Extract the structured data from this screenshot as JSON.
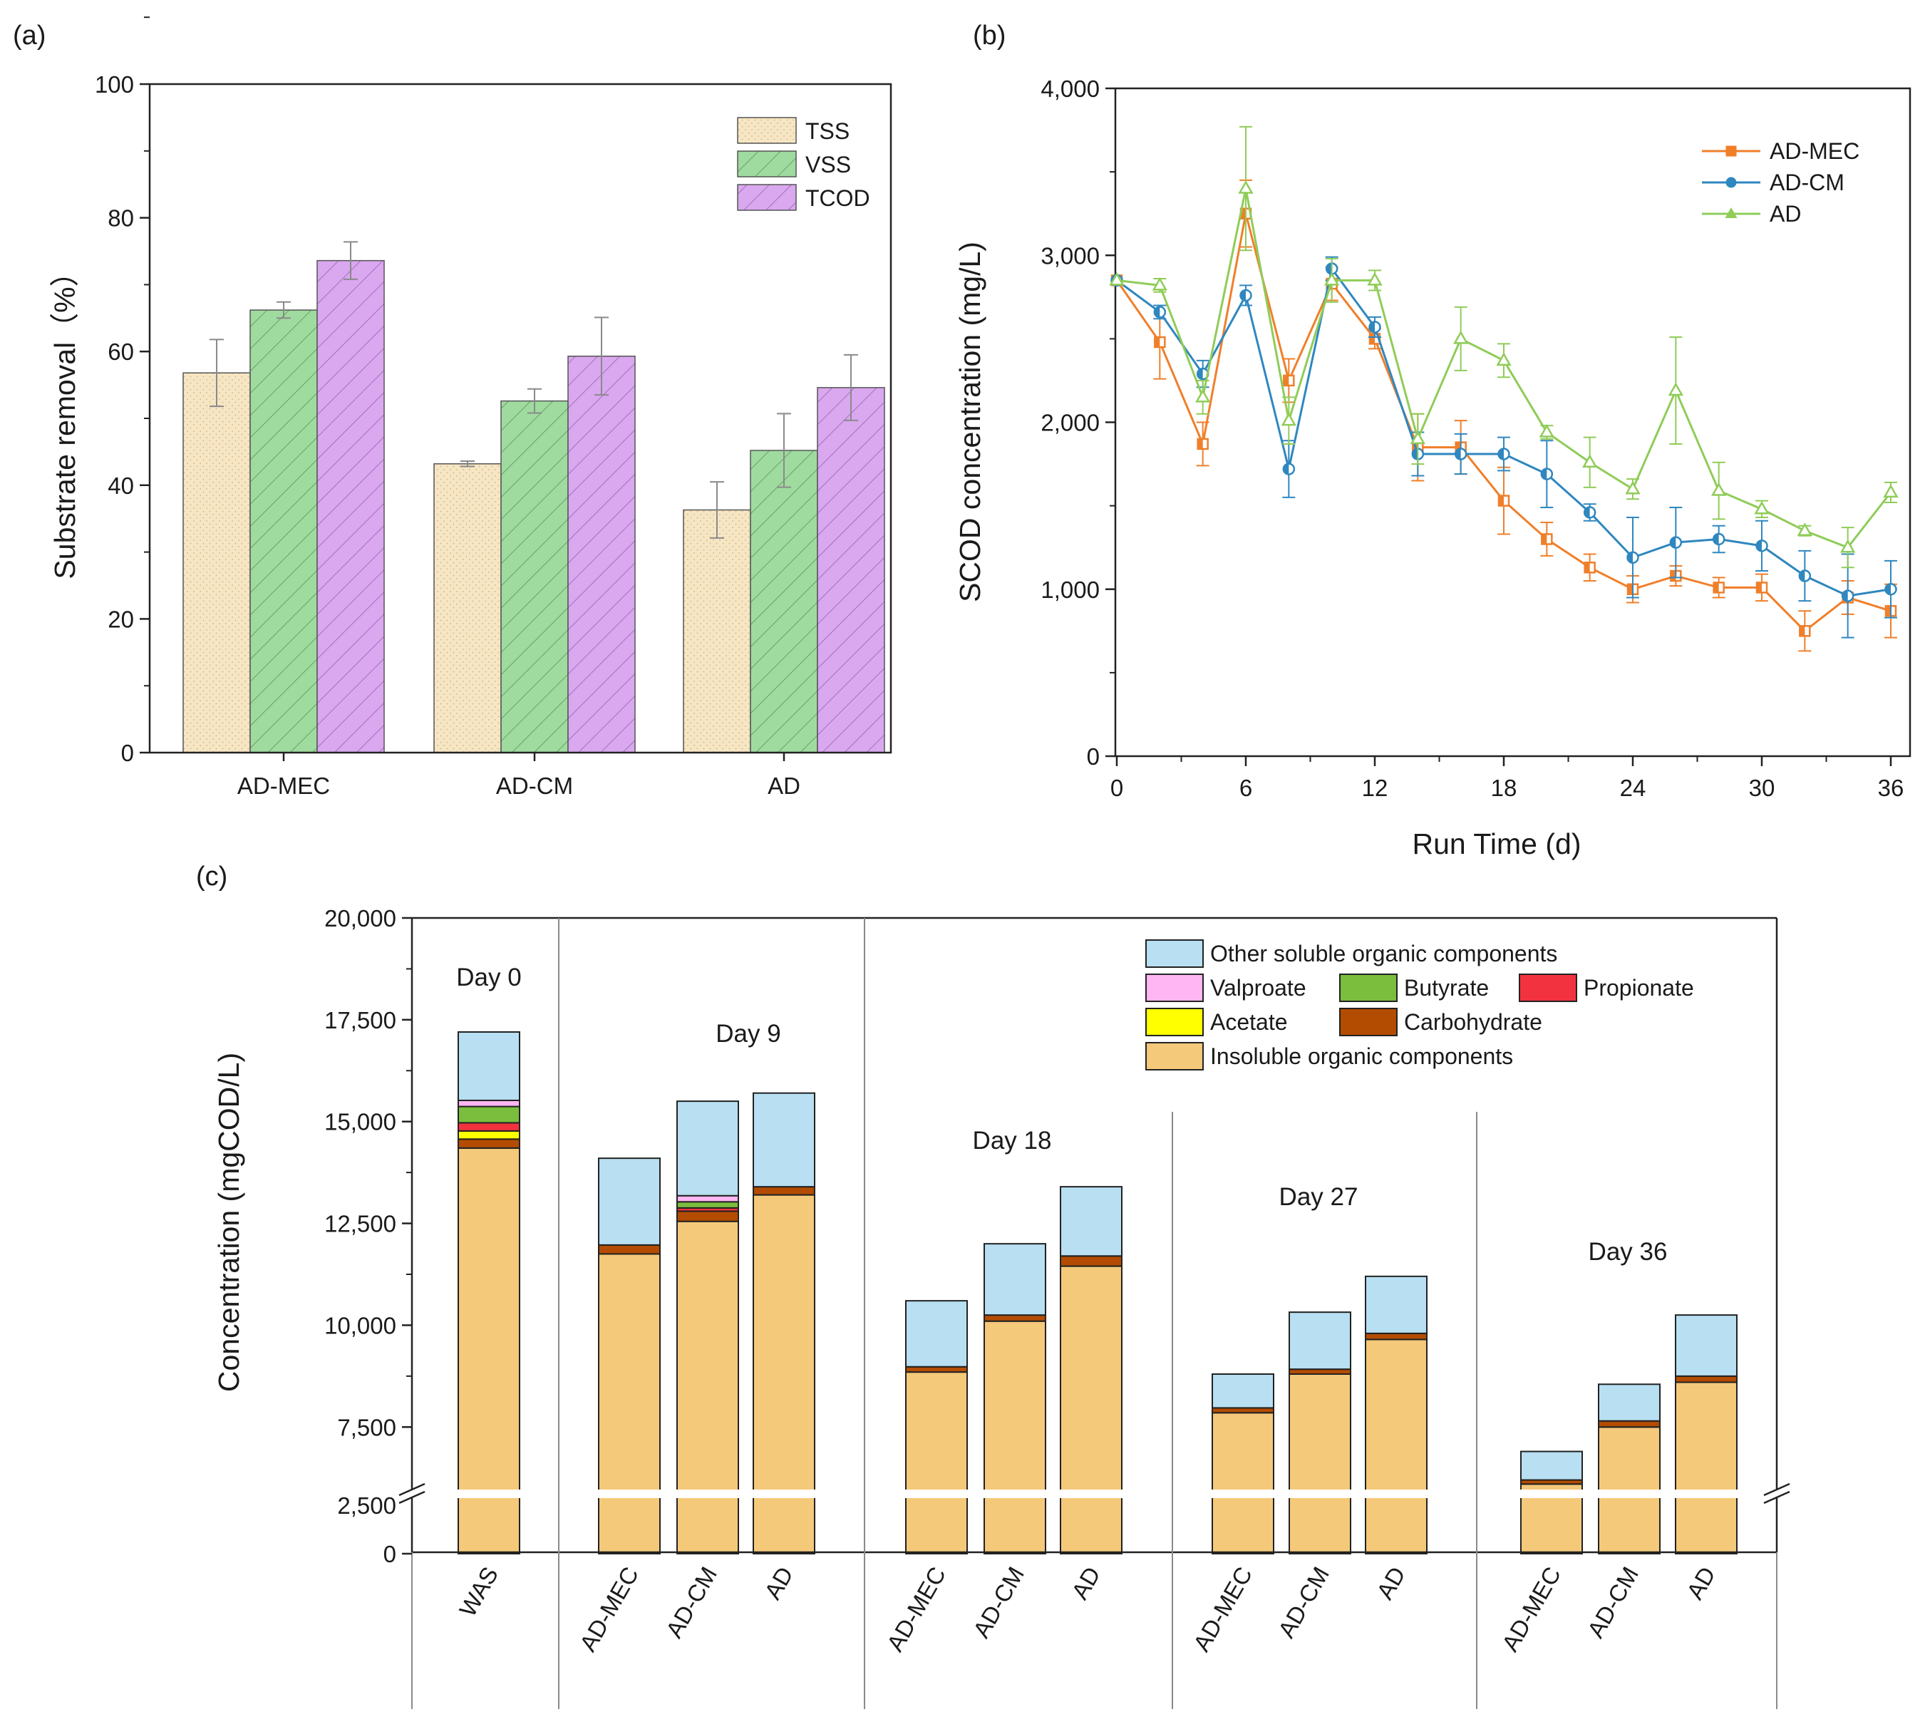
{
  "colors": {
    "tss": "#f7e6c4",
    "vss": "#9fdb9f",
    "tcod": "#d9a8ee",
    "ad_mec": "#f07f2a",
    "ad_cm": "#2f87c0",
    "ad": "#8fcc58",
    "insoluble": "#f5c97a",
    "carbohydrate": "#b34c00",
    "acetate": "#ffff00",
    "propionate": "#f2333f",
    "butyrate": "#7bbd3d",
    "valproate": "#ffb6f3",
    "other": "#b8dff2"
  },
  "chart_data": [
    {
      "panel": "(a)",
      "type": "bar",
      "ylabel": "Substrate removal（%）",
      "ylim": [
        0,
        100
      ],
      "yticks": [
        "0",
        "20",
        "40",
        "60",
        "80",
        "100"
      ],
      "categories": [
        "AD-MEC",
        "AD-CM",
        "AD"
      ],
      "series": [
        {
          "name": "TSS",
          "values": [
            56.8,
            43.2,
            36.3
          ],
          "errors": [
            5.0,
            0.4,
            4.2
          ]
        },
        {
          "name": "VSS",
          "values": [
            66.2,
            52.6,
            45.2
          ],
          "errors": [
            1.2,
            1.8,
            5.5
          ]
        },
        {
          "name": "TCOD",
          "values": [
            73.6,
            59.3,
            54.6
          ],
          "errors": [
            2.8,
            5.8,
            4.9
          ]
        }
      ],
      "legend_position": "top-right"
    },
    {
      "panel": "(b)",
      "type": "line",
      "xlabel": "Run Time (d)",
      "ylabel": "SCOD concentration (mg/L)",
      "xlim": [
        0,
        36
      ],
      "ylim": [
        0,
        4000
      ],
      "xticks": [
        "0",
        "6",
        "12",
        "18",
        "24",
        "30",
        "36"
      ],
      "yticks": [
        "0",
        "1,000",
        "2,000",
        "3,000",
        "4,000"
      ],
      "x": [
        0,
        2,
        4,
        6,
        8,
        10,
        12,
        14,
        16,
        18,
        20,
        22,
        24,
        26,
        28,
        30,
        32,
        34,
        36
      ],
      "series": [
        {
          "name": "AD-MEC",
          "values": [
            2850,
            2480,
            1870,
            3250,
            2250,
            2830,
            2500,
            1850,
            1850,
            1530,
            1300,
            1130,
            1000,
            1080,
            1010,
            1010,
            750,
            950,
            870
          ],
          "errors": [
            0,
            220,
            130,
            200,
            130,
            100,
            60,
            200,
            160,
            200,
            100,
            80,
            80,
            60,
            60,
            80,
            120,
            100,
            160
          ]
        },
        {
          "name": "AD-CM",
          "values": [
            2850,
            2660,
            2290,
            2760,
            1720,
            2920,
            2570,
            1810,
            1810,
            1810,
            1690,
            1460,
            1190,
            1280,
            1300,
            1260,
            1080,
            960,
            1000
          ],
          "errors": [
            0,
            40,
            80,
            60,
            170,
            70,
            60,
            130,
            120,
            100,
            200,
            50,
            240,
            210,
            80,
            150,
            150,
            250,
            170
          ]
        },
        {
          "name": "AD",
          "values": [
            2850,
            2820,
            2150,
            3400,
            2010,
            2850,
            2850,
            1900,
            2500,
            2370,
            1940,
            1760,
            1600,
            2190,
            1590,
            1480,
            1350,
            1250,
            1580
          ],
          "errors": [
            0,
            40,
            100,
            370,
            140,
            130,
            60,
            150,
            190,
            100,
            40,
            150,
            60,
            320,
            170,
            50,
            30,
            120,
            60
          ]
        }
      ],
      "legend_position": "top-right"
    },
    {
      "panel": "(c)",
      "type": "bar",
      "stacked": true,
      "ylabel": "Concentration (mgCOD/L)",
      "ylim": [
        0,
        20000
      ],
      "axis_break": [
        2500,
        6000
      ],
      "yticks": [
        "0",
        "2,500",
        "7,500",
        "10,000",
        "12,500",
        "15,000",
        "17,500",
        "20,000"
      ],
      "groups": [
        "Day 0",
        "Day 9",
        "Day 18",
        "Day 27",
        "Day 36"
      ],
      "categories": [
        "WAS",
        "AD-MEC",
        "AD-CM",
        "AD",
        "AD-MEC",
        "AD-CM",
        "AD",
        "AD-MEC",
        "AD-CM",
        "AD",
        "AD-MEC",
        "AD-CM",
        "AD"
      ],
      "group_index": [
        0,
        1,
        1,
        1,
        2,
        2,
        2,
        3,
        3,
        3,
        4,
        4,
        4
      ],
      "series": [
        {
          "name": "Insoluble organic components",
          "values": [
            14350,
            11750,
            12550,
            13200,
            8850,
            10100,
            11450,
            7850,
            8800,
            9650,
            6100,
            7500,
            8600
          ]
        },
        {
          "name": "Carbohydrate",
          "values": [
            220,
            220,
            250,
            200,
            130,
            150,
            250,
            120,
            120,
            150,
            100,
            150,
            150
          ]
        },
        {
          "name": "Acetate",
          "values": [
            200,
            0,
            0,
            0,
            0,
            0,
            0,
            0,
            0,
            0,
            0,
            0,
            0
          ]
        },
        {
          "name": "Propionate",
          "values": [
            200,
            0,
            80,
            0,
            0,
            0,
            0,
            0,
            0,
            0,
            0,
            0,
            0
          ]
        },
        {
          "name": "Butyrate",
          "values": [
            400,
            0,
            150,
            0,
            0,
            0,
            0,
            0,
            0,
            0,
            0,
            0,
            0
          ]
        },
        {
          "name": "Valproate",
          "values": [
            150,
            0,
            150,
            0,
            0,
            0,
            0,
            0,
            0,
            0,
            0,
            0,
            0
          ]
        },
        {
          "name": "Other soluble organic components",
          "values": [
            1680,
            2130,
            2320,
            2300,
            1620,
            1750,
            1700,
            830,
            1400,
            1400,
            700,
            900,
            1500
          ]
        }
      ],
      "legend_order": [
        "Other soluble organic components",
        "Valproate",
        "Butyrate",
        "Propionate",
        "Acetate",
        "Carbohydrate",
        "Insoluble organic components"
      ],
      "legend_position": "top-right"
    }
  ]
}
